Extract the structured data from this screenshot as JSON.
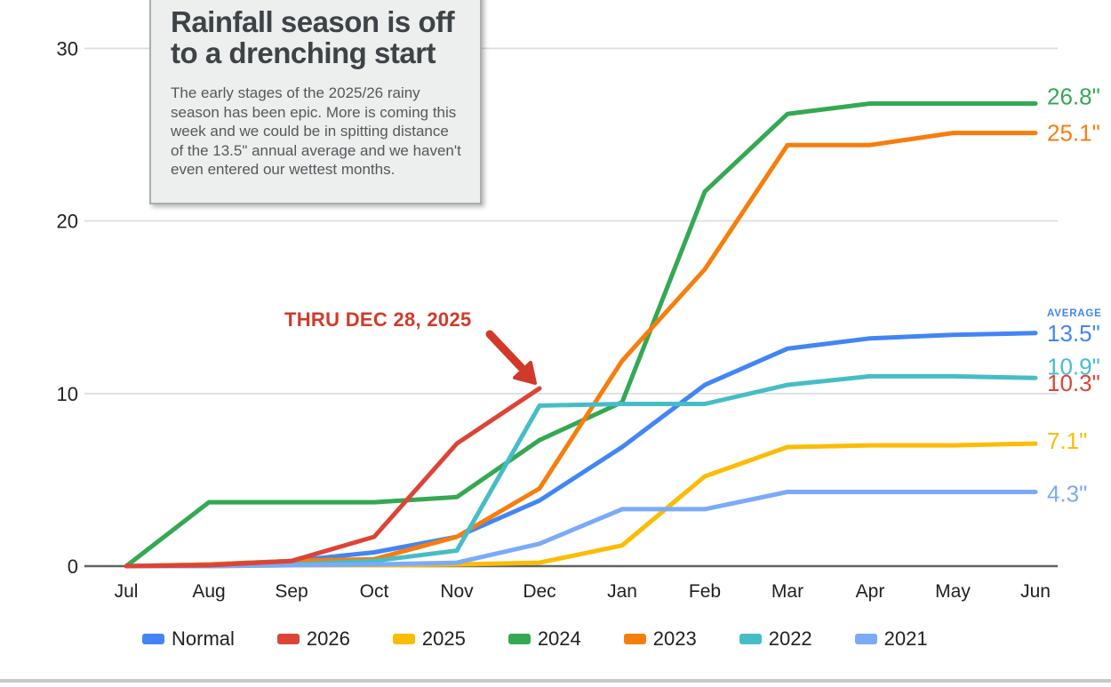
{
  "callout": {
    "title_lines": [
      "Rainfall season is off",
      "to a drenching start"
    ],
    "body": "The early stages of the 2025/26 rainy season has been epic. More is coming this week and we could be in spitting distance of the 13.5\" annual average and we haven't even entered our wettest months."
  },
  "annotation": {
    "label": "THRU DEC 28, 2025",
    "color": "#d03a2b"
  },
  "chart_data": {
    "type": "line",
    "title": "Rainfall season is off to a drenching start",
    "x_categories": [
      "Jul",
      "Aug",
      "Sep",
      "Oct",
      "Nov",
      "Dec",
      "Jan",
      "Feb",
      "Mar",
      "Apr",
      "May",
      "Jun"
    ],
    "y_ticks": [
      0,
      10,
      20,
      30
    ],
    "ylim": [
      0,
      33
    ],
    "grid": true,
    "legend_position": "bottom",
    "series": [
      {
        "name": "Normal",
        "color": "#4285f4",
        "end_label": "13.5\"",
        "end_label_prefix": "AVERAGE",
        "values": [
          0,
          0.1,
          0.3,
          0.8,
          1.7,
          3.8,
          6.9,
          10.5,
          12.6,
          13.2,
          13.4,
          13.5
        ]
      },
      {
        "name": "2026",
        "color": "#dc4437",
        "end_label": "10.3\"",
        "values": [
          0,
          0.05,
          0.3,
          1.7,
          7.1,
          10.3
        ]
      },
      {
        "name": "2025",
        "color": "#fbbc04",
        "end_label": "7.1\"",
        "values": [
          0,
          0,
          0.05,
          0.05,
          0.1,
          0.2,
          1.2,
          5.2,
          6.9,
          7.0,
          7.0,
          7.1
        ]
      },
      {
        "name": "2024",
        "color": "#34a853",
        "end_label": "26.8\"",
        "values": [
          0,
          3.7,
          3.7,
          3.7,
          4.0,
          7.3,
          9.5,
          21.7,
          26.2,
          26.8,
          26.8,
          26.8
        ]
      },
      {
        "name": "2023",
        "color": "#f57e0e",
        "end_label": "25.1\"",
        "values": [
          0,
          0.1,
          0.3,
          0.4,
          1.7,
          4.5,
          11.9,
          17.2,
          24.4,
          24.4,
          25.1,
          25.1
        ]
      },
      {
        "name": "2022",
        "color": "#46bdc6",
        "end_label": "10.9\"",
        "values": [
          0,
          0,
          0.1,
          0.3,
          0.9,
          9.3,
          9.4,
          9.4,
          10.5,
          11.0,
          11.0,
          10.9
        ]
      },
      {
        "name": "2021",
        "color": "#7baaf7",
        "end_label": "4.3\"",
        "values": [
          0,
          0,
          0.05,
          0.1,
          0.2,
          1.3,
          3.3,
          3.3,
          4.3,
          4.3,
          4.3,
          4.3
        ]
      }
    ]
  }
}
